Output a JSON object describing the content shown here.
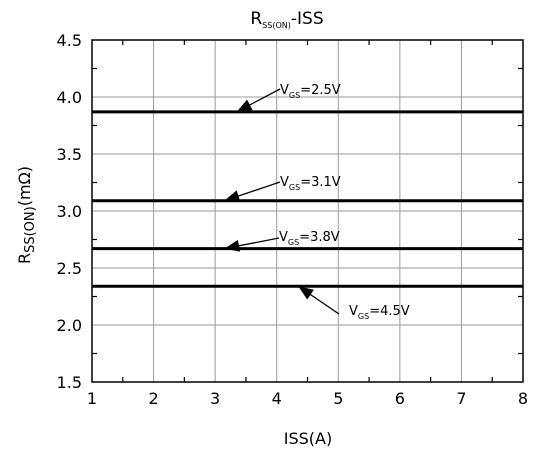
{
  "chart_data": {
    "type": "line",
    "title_main": "R",
    "title_sub": "SS(ON)",
    "title_rest": "-ISS",
    "xlabel": "ISS(A)",
    "ylabel_main": "R",
    "ylabel_sub": "SS(ON)",
    "ylabel_rest": "(mΩ)",
    "xlim": [
      1,
      8
    ],
    "ylim": [
      1.5,
      4.5
    ],
    "x_ticks": [
      "1",
      "2",
      "3",
      "4",
      "5",
      "6",
      "7",
      "8"
    ],
    "y_ticks": [
      "1.5",
      "2.0",
      "2.5",
      "3.0",
      "3.5",
      "4.0",
      "4.5"
    ],
    "grid": true,
    "series": [
      {
        "name_main": "V",
        "name_sub": "GS",
        "name_rest": "=2.5V",
        "x": [
          1,
          8
        ],
        "values": [
          3.87,
          3.87
        ]
      },
      {
        "name_main": "V",
        "name_sub": "GS",
        "name_rest": "=3.1V",
        "x": [
          1,
          8
        ],
        "values": [
          3.09,
          3.09
        ]
      },
      {
        "name_main": "V",
        "name_sub": "GS",
        "name_rest": "=3.8V",
        "x": [
          1,
          8
        ],
        "values": [
          2.67,
          2.67
        ]
      },
      {
        "name_main": "V",
        "name_sub": "GS",
        "name_rest": "=4.5V",
        "x": [
          1,
          8
        ],
        "values": [
          2.34,
          2.34
        ]
      }
    ]
  }
}
